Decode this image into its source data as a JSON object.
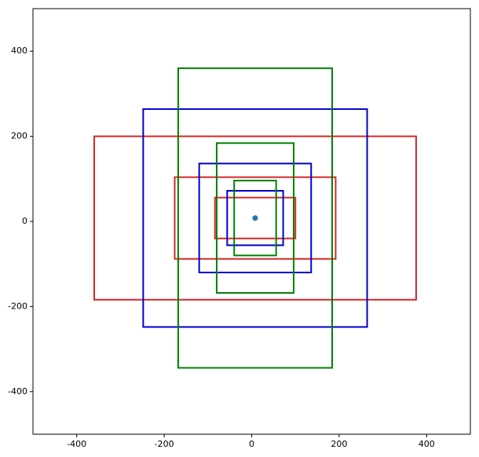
{
  "chart_data": {
    "type": "rectangles",
    "xlim": [
      -500,
      500
    ],
    "ylim": [
      -500,
      500
    ],
    "xticks": [
      -400,
      -200,
      0,
      200,
      400
    ],
    "yticks": [
      -400,
      -200,
      0,
      200,
      400
    ],
    "rects": [
      {
        "color": "#d62728",
        "x0": -360,
        "y0": -184,
        "x1": 376,
        "y1": 200
      },
      {
        "color": "#d62728",
        "x0": -176,
        "y0": -88,
        "x1": 192,
        "y1": 104
      },
      {
        "color": "#d62728",
        "x0": -84,
        "y0": -40,
        "x1": 100,
        "y1": 56
      },
      {
        "color": "#0000cc",
        "x0": -248,
        "y0": -248,
        "x1": 264,
        "y1": 264
      },
      {
        "color": "#0000cc",
        "x0": -120,
        "y0": -120,
        "x1": 136,
        "y1": 136
      },
      {
        "color": "#0000cc",
        "x0": -56,
        "y0": -56,
        "x1": 72,
        "y1": 72
      },
      {
        "color": "#008000",
        "x0": -168,
        "y0": -344,
        "x1": 184,
        "y1": 360
      },
      {
        "color": "#008000",
        "x0": -80,
        "y0": -168,
        "x1": 96,
        "y1": 184
      },
      {
        "color": "#008000",
        "x0": -40,
        "y0": -80,
        "x1": 56,
        "y1": 96
      }
    ],
    "points": {
      "color": "#1f77b4",
      "x": [
        8
      ],
      "y": [
        8
      ]
    }
  }
}
